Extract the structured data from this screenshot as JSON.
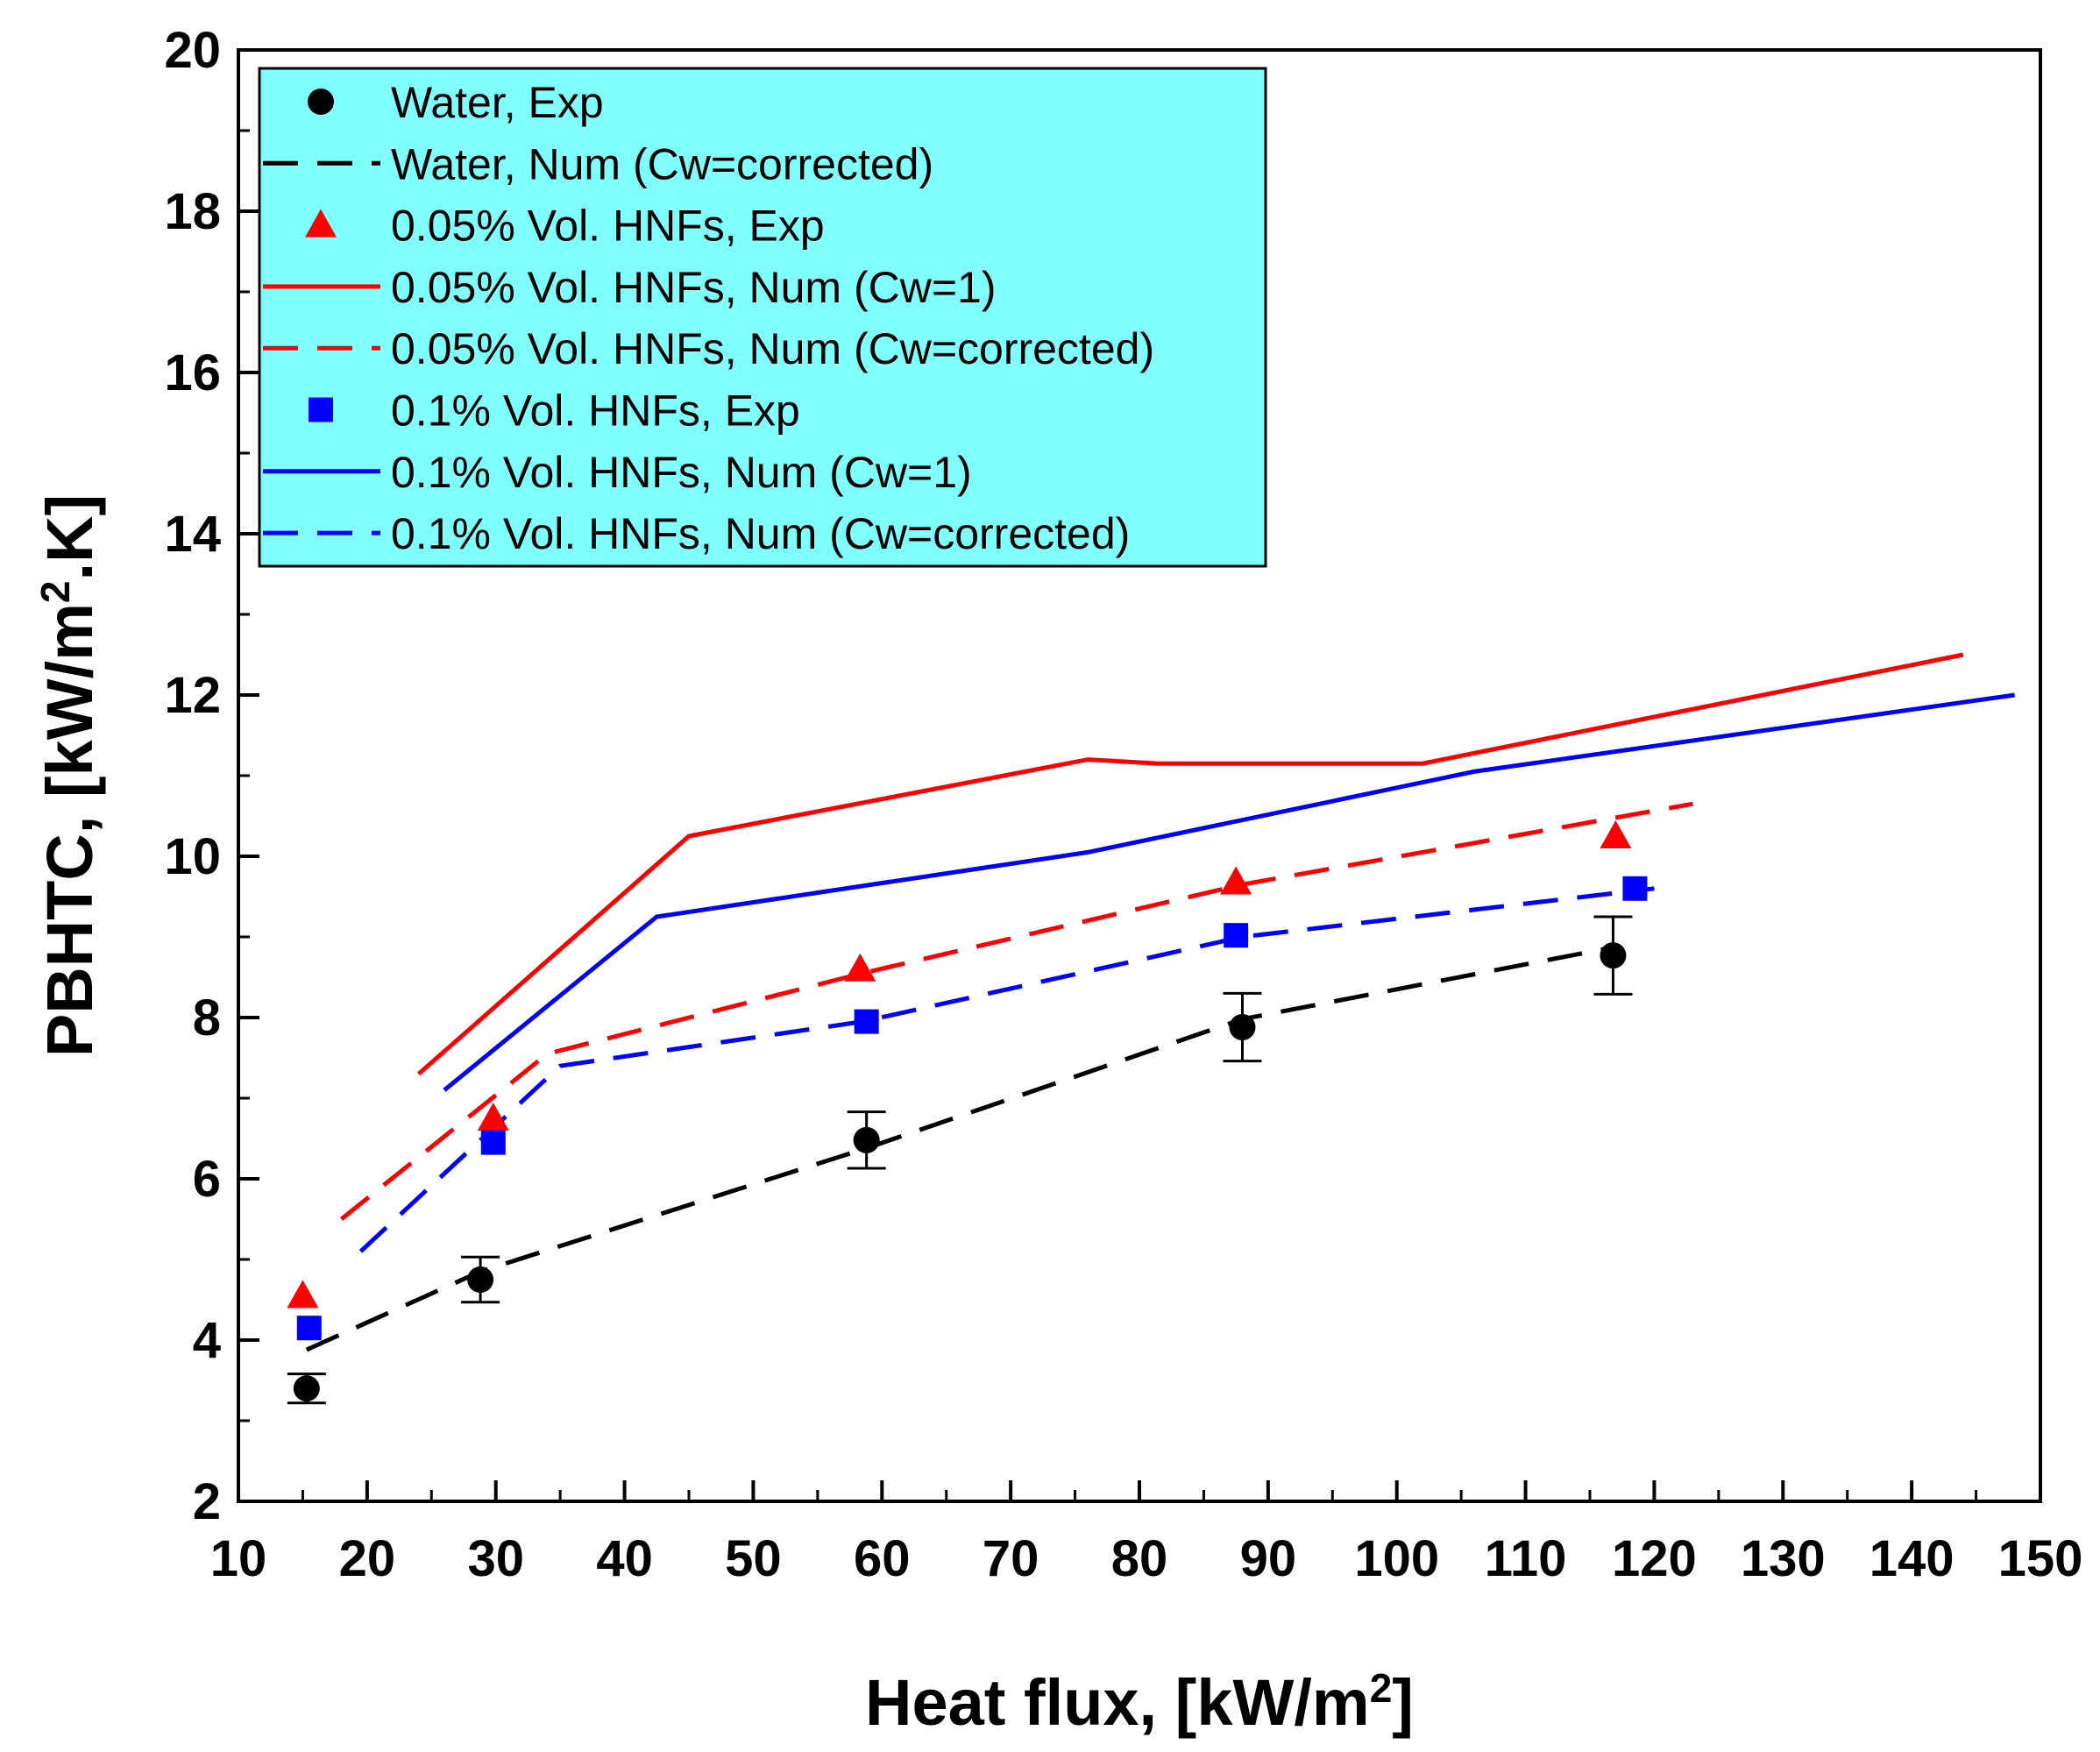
{
  "chart_data": {
    "type": "line",
    "title": "",
    "xlabel": {
      "main": "Heat flux, [kW/m",
      "sup": "2",
      "tail": "]"
    },
    "ylabel": {
      "main": "PBHTC, [kW/m",
      "sup": "2",
      "tail": ".K]"
    },
    "xlim": [
      10,
      150
    ],
    "ylim": [
      2,
      20
    ],
    "x_ticks": [
      10,
      20,
      30,
      40,
      50,
      60,
      70,
      80,
      90,
      100,
      110,
      120,
      130,
      140,
      150
    ],
    "y_ticks": [
      2,
      4,
      6,
      8,
      10,
      12,
      14,
      16,
      18,
      20
    ],
    "legend_position": "top-left",
    "colors": {
      "water": "#000000",
      "hnf005": "#ff0000",
      "hnf01": "#0000ff",
      "legend_bg": "#80ffff"
    },
    "series": [
      {
        "name": "Water, Exp",
        "kind": "marker",
        "marker": "circle",
        "color": "#000000",
        "x": [
          15.3,
          28.8,
          58.8,
          88.0,
          116.8
        ],
        "y": [
          3.4,
          4.75,
          6.48,
          7.88,
          8.77
        ],
        "err": [
          0.18,
          0.28,
          0.35,
          0.42,
          0.48
        ]
      },
      {
        "name": "Water, Num (Cw=corrected)",
        "kind": "line",
        "dash": "dashed",
        "color": "#000000",
        "x": [
          15.3,
          28.8,
          58.8,
          88.0,
          116.8
        ],
        "y": [
          3.88,
          4.85,
          6.38,
          7.98,
          8.87
        ]
      },
      {
        "name": "0.05% Vol. HNFs, Exp",
        "kind": "marker",
        "marker": "triangle",
        "color": "#ff0000",
        "x": [
          15.0,
          29.8,
          58.3,
          87.5,
          117.0
        ],
        "y": [
          4.55,
          6.75,
          8.6,
          9.68,
          10.25
        ]
      },
      {
        "name": "0.05% Vol. HNFs, Num (Cw=1)",
        "kind": "line",
        "dash": "solid",
        "color": "#ff0000",
        "x": [
          24.0,
          45.0,
          76.0,
          81.5,
          102.0,
          144.0
        ],
        "y": [
          7.3,
          10.25,
          11.2,
          11.15,
          11.15,
          12.5
        ]
      },
      {
        "name": "0.05% Vol. HNFs, Num (Cw=corrected)",
        "kind": "line",
        "dash": "dashed",
        "color": "#ff0000",
        "x": [
          18.0,
          34.0,
          58.5,
          88.0,
          123.0
        ],
        "y": [
          5.5,
          7.55,
          8.55,
          9.65,
          10.65
        ]
      },
      {
        "name": "0.1% Vol. HNFs, Exp",
        "kind": "marker",
        "marker": "square",
        "color": "#0000ff",
        "x": [
          15.5,
          29.8,
          58.8,
          87.5,
          118.5
        ],
        "y": [
          4.15,
          6.45,
          7.95,
          9.02,
          9.6
        ]
      },
      {
        "name": "0.1% Vol. HNFs, Num (Cw=1)",
        "kind": "line",
        "dash": "solid",
        "color": "#0000ff",
        "x": [
          26.0,
          42.5,
          76.0,
          106.0,
          148.0
        ],
        "y": [
          7.1,
          9.25,
          10.05,
          11.05,
          12.0
        ]
      },
      {
        "name": "0.1% Vol. HNFs, Num (Cw=corrected)",
        "kind": "line",
        "dash": "dashed",
        "color": "#0000ff",
        "x": [
          19.5,
          35.0,
          58.5,
          88.0,
          120.0
        ],
        "y": [
          5.1,
          7.4,
          7.95,
          9.0,
          9.6
        ]
      }
    ]
  }
}
